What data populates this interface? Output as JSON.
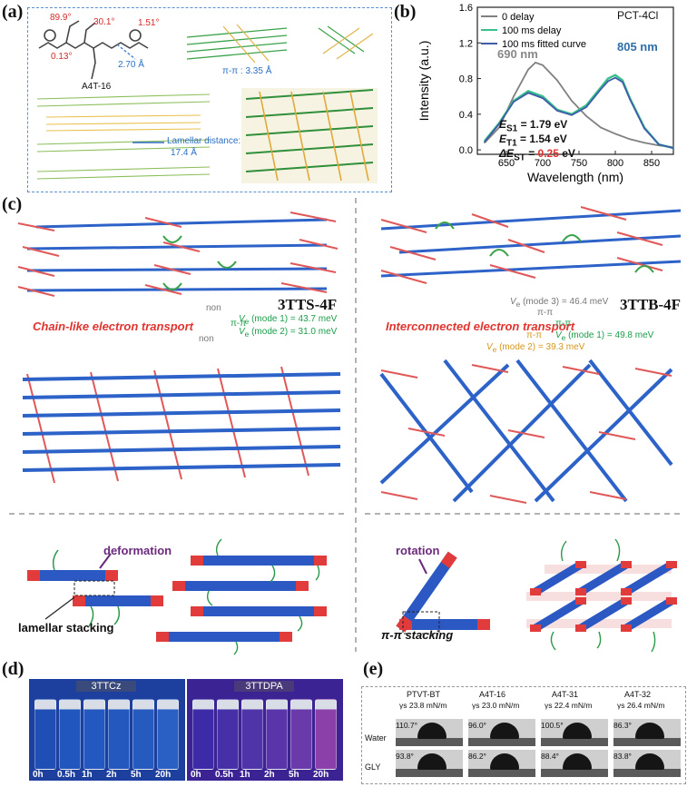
{
  "panels": {
    "a": {
      "label": "(a)",
      "angles": [
        "89.9°",
        "30.1°",
        "1.51°",
        "0.13°"
      ],
      "distance": "2.70 Å",
      "molecule": "A4T-16",
      "pi_pi": "π-π : 3.35 Å",
      "lamellar_label": "Lamellar distance:",
      "lamellar_value": "17.4 Å"
    },
    "b": {
      "label": "(b)",
      "material": "PCT-4Cl",
      "peak1": "690 nm",
      "peak2": "805 nm",
      "energies": [
        "E",
        "E",
        "ΔE"
      ],
      "es1_sub": "S1",
      "es1_val": "= 1.79 eV",
      "et1_sub": "T1",
      "et1_val": "= 1.54 eV",
      "dest_sub": "ST",
      "dest_eq": "=",
      "dest_val": "0.25",
      "dest_unit": "eV"
    },
    "c": {
      "label": "(c)",
      "left_title": "3TTS-4F",
      "right_title": "3TTB-4F",
      "left_caption": "Chain-like electron transport",
      "right_caption": "Interconnected electron transport",
      "non": "non",
      "pipi": "π-π",
      "left_v1": "V",
      "left_v1_text": "(mode 1) = 43.7 meV",
      "left_v2_text": "(mode 2) = 31.0 meV",
      "right_v3_text": "(mode 3) = 46.4 meV",
      "right_v1_text": "(mode 1) = 49.8 meV",
      "right_v2_text": "(mode 2) = 39.3 meV",
      "v_sub": "e",
      "deformation": "deformation",
      "lamellar_stacking": "lamellar stacking",
      "rotation": "rotation",
      "pipi_stacking": "π-π stacking"
    },
    "d": {
      "label": "(d)",
      "left_title": "3TTCz",
      "right_title": "3TTDPA",
      "times": [
        "0h",
        "0.5h",
        "1h",
        "2h",
        "5h",
        "20h"
      ]
    },
    "e": {
      "label": "(e)",
      "columns": [
        {
          "name": "PTVT-BT",
          "gamma": "γs 23.8 mN/m",
          "water": "110.7°",
          "gly": "93.8°"
        },
        {
          "name": "A4T-16",
          "gamma": "γs 23.0 mN/m",
          "water": "96.0°",
          "gly": "86.2°"
        },
        {
          "name": "A4T-31",
          "gamma": "γs 22.4 mN/m",
          "water": "100.5°",
          "gly": "88.4°"
        },
        {
          "name": "A4T-32",
          "gamma": "γs 26.4 mN/m",
          "water": "86.3°",
          "gly": "83.8°"
        }
      ],
      "rows": [
        "Water",
        "GLY"
      ]
    }
  },
  "chart_data": {
    "type": "line",
    "title": "",
    "xlabel": "Wavelength (nm)",
    "ylabel": "Intensity (a.u.)",
    "xlim": [
      610,
      880
    ],
    "ylim": [
      -0.05,
      1.6
    ],
    "xticks": [
      650,
      700,
      750,
      800,
      850
    ],
    "yticks": [
      0.0,
      0.4,
      0.8,
      1.2,
      1.6
    ],
    "legend": "top-left",
    "series": [
      {
        "name": "0 delay",
        "color": "#808080",
        "x": [
          620,
          640,
          660,
          680,
          690,
          700,
          720,
          740,
          760,
          780,
          800,
          820,
          840,
          860,
          880
        ],
        "y": [
          0.08,
          0.25,
          0.6,
          0.9,
          0.98,
          0.95,
          0.78,
          0.55,
          0.38,
          0.25,
          0.18,
          0.12,
          0.08,
          0.05,
          0.03
        ]
      },
      {
        "name": "100 ms delay",
        "color": "#3bbf8c",
        "x": [
          620,
          640,
          660,
          680,
          700,
          720,
          740,
          760,
          780,
          790,
          800,
          810,
          820,
          840,
          860,
          880
        ],
        "y": [
          0.1,
          0.3,
          0.55,
          0.66,
          0.6,
          0.45,
          0.4,
          0.5,
          0.7,
          0.8,
          0.84,
          0.78,
          0.58,
          0.25,
          0.06,
          0.02
        ]
      },
      {
        "name": "100 ms fitted curve",
        "color": "#3d5da8",
        "x": [
          620,
          640,
          660,
          680,
          700,
          720,
          740,
          760,
          780,
          790,
          800,
          810,
          820,
          840,
          860,
          880
        ],
        "y": [
          0.09,
          0.29,
          0.54,
          0.64,
          0.58,
          0.44,
          0.39,
          0.48,
          0.68,
          0.77,
          0.81,
          0.76,
          0.57,
          0.24,
          0.06,
          0.02
        ]
      }
    ]
  }
}
